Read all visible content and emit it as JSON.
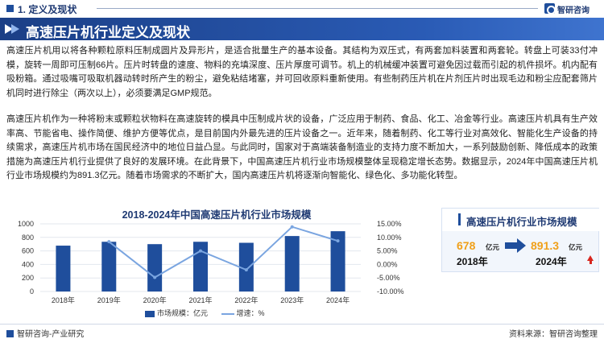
{
  "header": {
    "section_title": "1. 定义及现状",
    "logo_text": "智研咨询"
  },
  "banner": {
    "title": "高速压片机行业定义及现状"
  },
  "paragraphs": [
    "高速压片机用以将各种颗粒原料压制成圆片及异形片，是适合批量生产的基本设备。其结构为双压式，有两套加料装置和两套轮。转盘上可装33付冲模，旋转一周即可压制66片。压片时转盘的速度、物料的充填深度、压片厚度可调节。机上的机械缓冲装置可避免因过载而引起的机件损坏。机内配有吸粉箱。通过吸嘴可吸取机器动转时所产生的粉尘，避免粘结堵塞，并可回收原料重新使用。有些制药压片机在片剂压片时出现毛边和粉尘应配套筛片机同时进行除尘（两次以上），必须要满足GMP规范。",
    "高速压片机作为一种将粉末或颗粒状物料在高速旋转的模具中压制成片状的设备，广泛应用于制药、食品、化工、冶金等行业。高速压片机具有生产效率高、节能省电、操作简便、维护方便等优点，是目前国内外最先进的压片设备之一。近年来，随着制药、化工等行业对高效化、智能化生产设备的持续需求，高速压片机市场在国民经济中的地位日益凸显。与此同时，国家对于高端装备制造业的支持力度不断加大，一系列鼓励创新、降低成本的政策措施为高速压片机行业提供了良好的发展环境。在此背景下，中国高速压片机行业市场规模整体呈现稳定增长态势。数据显示，2024年中国高速压片机行业市场规模约为891.3亿元。随着市场需求的不断扩大，国内高速压片机将逐渐向智能化、绿色化、多功能化转型。"
  ],
  "chart_data": {
    "type": "bar",
    "title": "2018-2024年中国高速压片机行业市场规模",
    "categories": [
      "2018年",
      "2019年",
      "2020年",
      "2021年",
      "2022年",
      "2023年",
      "2024年"
    ],
    "series": [
      {
        "name": "市场规模：亿元",
        "type": "bar",
        "axis": "left",
        "values": [
          678,
          735,
          700,
          735,
          720,
          820,
          891.3
        ]
      },
      {
        "name": "增速：%",
        "type": "line",
        "axis": "right",
        "values": [
          null,
          8.4,
          -4.8,
          5.0,
          -2.0,
          13.9,
          8.7
        ]
      }
    ],
    "y_left": {
      "min": 0,
      "max": 1000,
      "ticks": [
        0,
        200,
        400,
        600,
        800,
        1000
      ]
    },
    "y_right": {
      "min": -10,
      "max": 15,
      "ticks": [
        "-10.00%",
        "-5.00%",
        "0.00%",
        "5.00%",
        "10.00%",
        "15.00%"
      ]
    },
    "bar_color": "#1f4e9c",
    "line_color": "#7aa5e0",
    "legend_position": "bottom"
  },
  "card": {
    "title": "高速压片机行业市场规模",
    "start_value": "678",
    "start_unit": "亿元",
    "start_year": "2018年",
    "end_value": "891.3",
    "end_unit": "亿元",
    "end_year": "2024年"
  },
  "footer": {
    "left": "智研咨询-产业研究",
    "right": "资料来源：智研咨询整理"
  }
}
